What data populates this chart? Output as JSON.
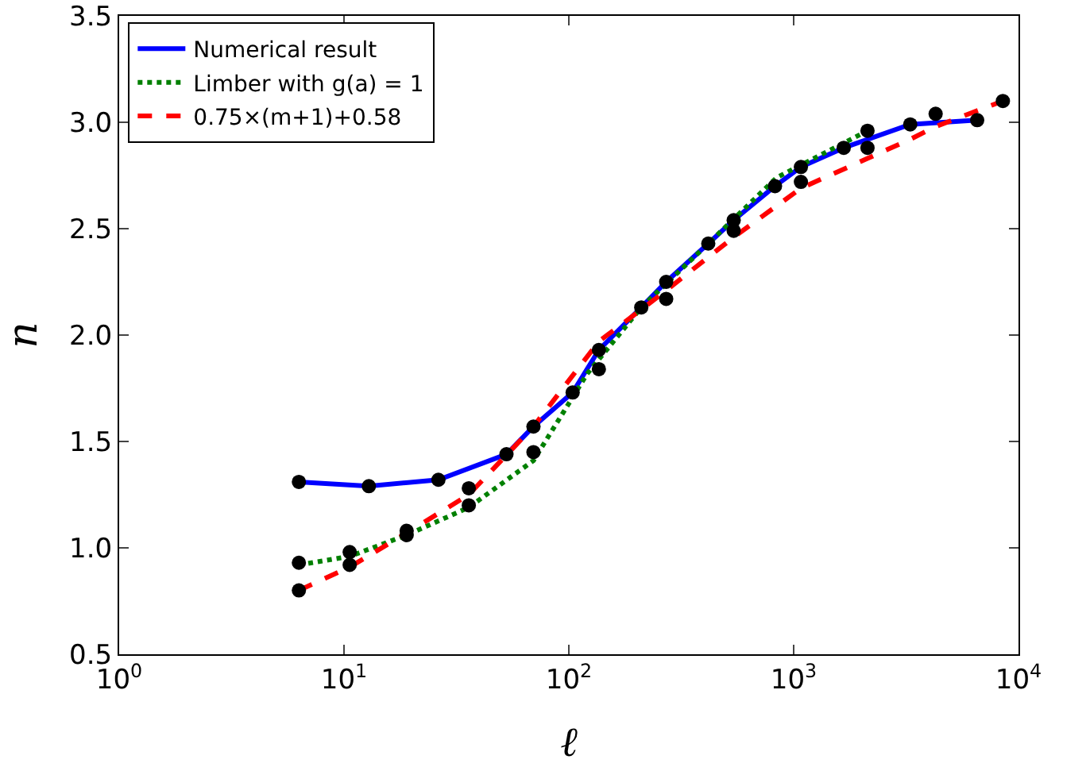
{
  "chart_data": {
    "type": "line",
    "xlabel": "ℓ",
    "ylabel": "n",
    "log": "x",
    "xlim": [
      1,
      10000
    ],
    "ylim": [
      0.5,
      3.5
    ],
    "xticks": [
      {
        "value": 1,
        "label": "10$^{0}$"
      },
      {
        "value": 10,
        "label": "10$^{1}$"
      },
      {
        "value": 100,
        "label": "10$^{2}$"
      },
      {
        "value": 1000,
        "label": "10$^{3}$"
      },
      {
        "value": 10000,
        "label": "10$^{4}$"
      }
    ],
    "yticks": [
      {
        "value": 0.5,
        "label": "0.5"
      },
      {
        "value": 1,
        "label": "1.0"
      },
      {
        "value": 1.5,
        "label": "1.5"
      },
      {
        "value": 2,
        "label": "2.0"
      },
      {
        "value": 2.5,
        "label": "2.5"
      },
      {
        "value": 3,
        "label": "3.0"
      },
      {
        "value": 3.5,
        "label": "3.5"
      }
    ],
    "grid": false,
    "legend": "top left",
    "series": [
      {
        "name": "Numerical result",
        "line_style": "solid",
        "color": "#0000ff",
        "x": [
          6.3,
          12.9,
          26.3,
          52.8,
          69.6,
          104,
          136,
          210,
          271,
          417,
          541,
          826,
          1077,
          1670,
          3300,
          6550
        ],
        "values": [
          1.31,
          1.29,
          1.32,
          1.44,
          1.57,
          1.73,
          1.93,
          2.13,
          2.25,
          2.43,
          2.54,
          2.7,
          2.79,
          2.88,
          2.99,
          3.01
        ]
      },
      {
        "name": "Limber with g(a) = 1",
        "line_style": "dotted",
        "color": "#008000",
        "x": [
          6.3,
          10.6,
          19,
          35.9,
          69.6,
          121,
          210,
          417,
          840,
          2130
        ],
        "values": [
          0.92,
          0.96,
          1.06,
          1.19,
          1.41,
          1.82,
          2.13,
          2.43,
          2.74,
          2.96
        ]
      },
      {
        "name": "0.75×(m+1)+0.58",
        "line_style": "dashed",
        "color": "#ff0000",
        "x": [
          6.3,
          10.6,
          19,
          35.9,
          69.6,
          136,
          210,
          271,
          541,
          1077,
          2130,
          3300,
          4280,
          8520
        ],
        "values": [
          0.8,
          0.91,
          1.07,
          1.25,
          1.57,
          1.97,
          2.12,
          2.21,
          2.46,
          2.69,
          2.83,
          2.92,
          2.98,
          3.1
        ]
      },
      {
        "type": "scatter",
        "marker": "circle",
        "color": "#000000",
        "x": [
          6.3,
          6.3,
          6.3,
          12.9,
          10.6,
          10.6,
          26.3,
          19,
          19,
          35.9,
          35.9,
          52.8,
          69.6,
          69.6,
          104,
          136,
          136,
          210,
          271,
          271,
          417,
          541,
          541,
          826,
          1077,
          1077,
          1670,
          2130,
          2130,
          3300,
          4280,
          6550,
          8520
        ],
        "values": [
          1.31,
          0.93,
          0.8,
          1.29,
          0.98,
          0.92,
          1.32,
          1.08,
          1.06,
          1.28,
          1.2,
          1.44,
          1.57,
          1.45,
          1.73,
          1.93,
          1.84,
          2.13,
          2.25,
          2.17,
          2.43,
          2.54,
          2.49,
          2.7,
          2.79,
          2.72,
          2.88,
          2.96,
          2.88,
          2.99,
          3.04,
          3.01,
          3.1
        ]
      }
    ]
  }
}
